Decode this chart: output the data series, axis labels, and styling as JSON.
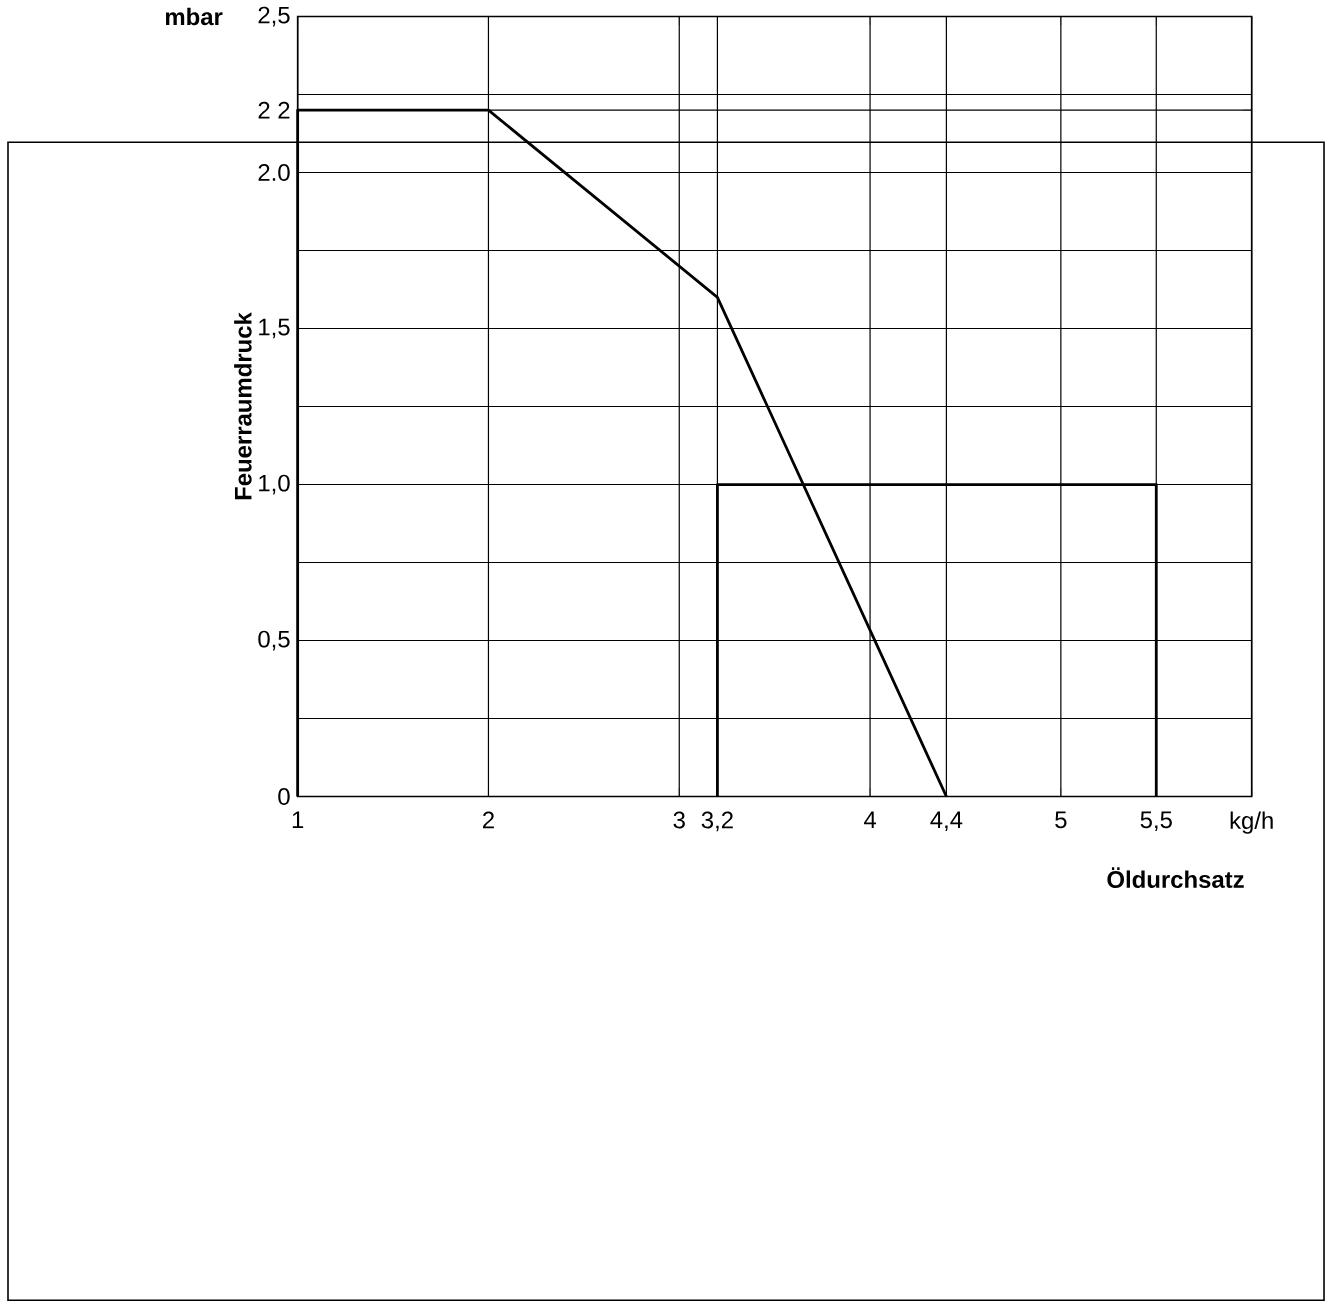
{
  "chart_data": {
    "type": "line",
    "xlabel": "Öldurchsatz",
    "ylabel": "Feuerraumdruck",
    "annotations": [
      "mbar"
    ],
    "xlim": [
      1,
      6
    ],
    "ylim": [
      0,
      2.5
    ],
    "xticks": [
      1,
      2,
      3,
      {
        "value": 3.2,
        "label": "3,2"
      },
      4,
      {
        "value": 4.4,
        "label": "4,4"
      },
      5,
      {
        "value": 5.5,
        "label": "5,5"
      },
      {
        "value": 6,
        "label": "kg/h"
      }
    ],
    "yticks": [
      0,
      {
        "value": 0.25,
        "label": null
      },
      {
        "value": 0.5,
        "label": "0,5"
      },
      {
        "value": 0.75,
        "label": null
      },
      {
        "value": 1,
        "label": "1,0"
      },
      {
        "value": 1.25,
        "label": null
      },
      {
        "value": 1.5,
        "label": "1,5"
      },
      {
        "value": 1.75,
        "label": null
      },
      {
        "value": 2,
        "label": "2.0"
      },
      {
        "value": 2.2,
        "label": "2 2"
      },
      {
        "value": 2.25,
        "label": null
      },
      {
        "value": 2.5,
        "label": "2,5"
      }
    ],
    "grid": true,
    "marker": "none",
    "line_style": "solid",
    "series": [
      {
        "color": "#000000",
        "x": [
          1,
          1,
          2,
          3.2,
          4.4
        ],
        "values": [
          0,
          2.2,
          2.2,
          1.6,
          0
        ]
      },
      {
        "color": "#000000",
        "x": [
          3.2,
          3.2,
          5.5,
          5.5
        ],
        "values": [
          0,
          1,
          1,
          0
        ]
      }
    ]
  }
}
